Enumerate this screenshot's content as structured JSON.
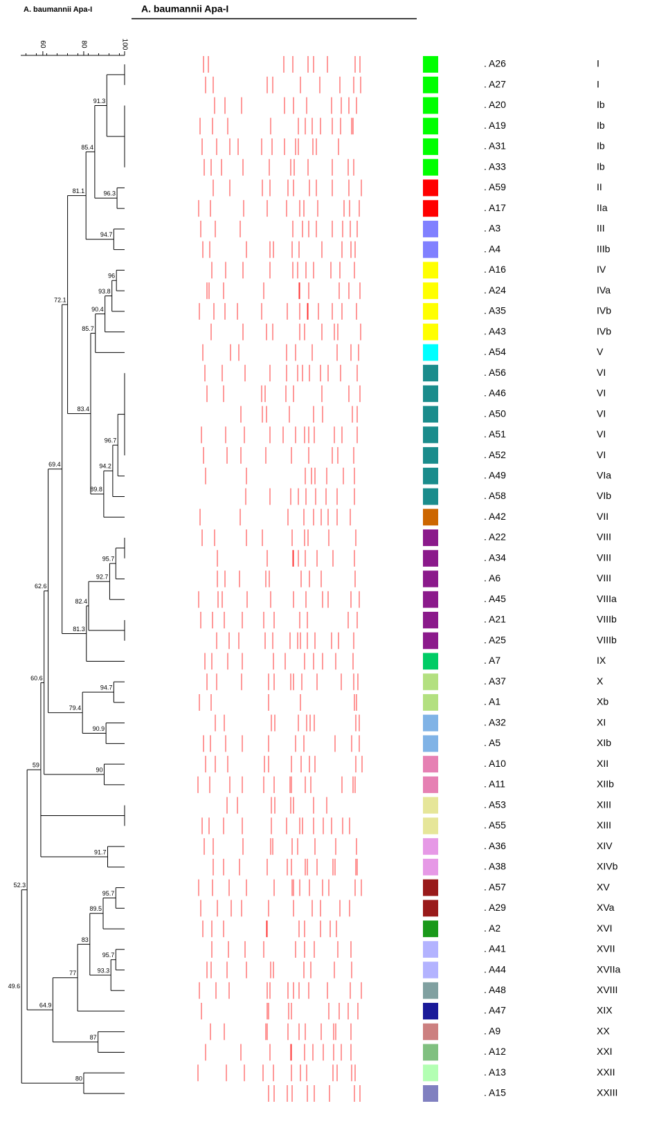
{
  "chart_data": {
    "type": "dendrogram",
    "dendrogram_title": "A. baumannii Apa-I",
    "gel_title": "A. baumannii Apa-I",
    "xlim": [
      49.2,
      100
    ],
    "xticks": [
      60,
      80,
      100
    ],
    "rows": [
      {
        "isolate": ". A26",
        "type": "I",
        "color": "#00ff00"
      },
      {
        "isolate": ". A27",
        "type": "I",
        "color": "#00ff00"
      },
      {
        "isolate": ". A20",
        "type": "Ib",
        "color": "#00ff00"
      },
      {
        "isolate": ". A19",
        "type": "Ib",
        "color": "#00ff00"
      },
      {
        "isolate": ". A31",
        "type": "Ib",
        "color": "#00ff00"
      },
      {
        "isolate": ". A33",
        "type": "Ib",
        "color": "#00ff00"
      },
      {
        "isolate": ". A59",
        "type": "II",
        "color": "#ff0000"
      },
      {
        "isolate": ". A17",
        "type": "IIa",
        "color": "#ff0000"
      },
      {
        "isolate": ". A3",
        "type": "III",
        "color": "#8080ff"
      },
      {
        "isolate": ". A4",
        "type": "IIIb",
        "color": "#8080ff"
      },
      {
        "isolate": ". A16",
        "type": "IV",
        "color": "#ffff00"
      },
      {
        "isolate": ". A24",
        "type": "IVa",
        "color": "#ffff00"
      },
      {
        "isolate": ". A35",
        "type": "IVb",
        "color": "#ffff00"
      },
      {
        "isolate": ". A43",
        "type": "IVb",
        "color": "#ffff00"
      },
      {
        "isolate": ". A54",
        "type": "V",
        "color": "#00ffff"
      },
      {
        "isolate": ". A56",
        "type": "VI",
        "color": "#1a8c8c"
      },
      {
        "isolate": ". A46",
        "type": "VI",
        "color": "#1a8c8c"
      },
      {
        "isolate": ". A50",
        "type": "VI",
        "color": "#1a8c8c"
      },
      {
        "isolate": ". A51",
        "type": "VI",
        "color": "#1a8c8c"
      },
      {
        "isolate": ". A52",
        "type": "VI",
        "color": "#1a8c8c"
      },
      {
        "isolate": ". A49",
        "type": "VIa",
        "color": "#1a8c8c"
      },
      {
        "isolate": ". A58",
        "type": "VIb",
        "color": "#1a8c8c"
      },
      {
        "isolate": ". A42",
        "type": "VII",
        "color": "#cc6600"
      },
      {
        "isolate": ". A22",
        "type": "VIII",
        "color": "#8b1a8b"
      },
      {
        "isolate": ". A34",
        "type": "VIII",
        "color": "#8b1a8b"
      },
      {
        "isolate": ". A6",
        "type": "VIII",
        "color": "#8b1a8b"
      },
      {
        "isolate": ". A45",
        "type": "VIIIa",
        "color": "#8b1a8b"
      },
      {
        "isolate": ". A21",
        "type": "VIIIb",
        "color": "#8b1a8b"
      },
      {
        "isolate": ". A25",
        "type": "VIIIb",
        "color": "#8b1a8b"
      },
      {
        "isolate": ". A7",
        "type": "IX",
        "color": "#00cc66"
      },
      {
        "isolate": ". A37",
        "type": "X",
        "color": "#b3e080"
      },
      {
        "isolate": ". A1",
        "type": "Xb",
        "color": "#b3e080"
      },
      {
        "isolate": ". A32",
        "type": "XI",
        "color": "#80b3e6"
      },
      {
        "isolate": ". A5",
        "type": "XIb",
        "color": "#80b3e6"
      },
      {
        "isolate": ". A10",
        "type": "XII",
        "color": "#e680b3"
      },
      {
        "isolate": ". A11",
        "type": "XIIb",
        "color": "#e680b3"
      },
      {
        "isolate": ". A53",
        "type": "XIII",
        "color": "#e6e699"
      },
      {
        "isolate": ". A55",
        "type": "XIII",
        "color": "#e6e699"
      },
      {
        "isolate": ". A36",
        "type": "XIV",
        "color": "#e699e6"
      },
      {
        "isolate": ". A38",
        "type": "XIVb",
        "color": "#e699e6"
      },
      {
        "isolate": ". A57",
        "type": "XV",
        "color": "#991a1a"
      },
      {
        "isolate": ". A29",
        "type": "XVa",
        "color": "#991a1a"
      },
      {
        "isolate": ". A2",
        "type": "XVI",
        "color": "#1a991a"
      },
      {
        "isolate": ". A41",
        "type": "XVII",
        "color": "#b3b3ff"
      },
      {
        "isolate": ". A44",
        "type": "XVIIa",
        "color": "#b3b3ff"
      },
      {
        "isolate": ". A48",
        "type": "XVIII",
        "color": "#80a0a0"
      },
      {
        "isolate": ". A47",
        "type": "XIX",
        "color": "#1a1a99"
      },
      {
        "isolate": ". A9",
        "type": "XX",
        "color": "#cc8080"
      },
      {
        "isolate": ". A12",
        "type": "XXI",
        "color": "#80c080"
      },
      {
        "isolate": ". A13",
        "type": "XXII",
        "color": "#b3ffb3"
      },
      {
        "isolate": ". A15",
        "type": "XXIII",
        "color": "#8080c0"
      }
    ],
    "tree": {
      "value": 49.6,
      "children": [
        {
          "value": 52.3,
          "children": [
            {
              "value": 59.0,
              "children": [
                {
                  "value": 60.6,
                  "children": [
                    {
                      "value": 62.6,
                      "children": [
                        {
                          "value": 69.4,
                          "children": [
                            {
                              "value": 72.1,
                              "children": [
                                {
                                  "value": 81.1,
                                  "children": [
                                    {
                                      "value": 85.4,
                                      "children": [
                                        {
                                          "value": 91.3,
                                          "children": [
                                            [
                                              0,
                                              1
                                            ],
                                            [
                                              2,
                                              3,
                                              4,
                                              5
                                            ]
                                          ]
                                        },
                                        {
                                          "value": 96.3,
                                          "children": [
                                            6,
                                            7
                                          ]
                                        }
                                      ]
                                    },
                                    {
                                      "value": 94.7,
                                      "children": [
                                        8,
                                        9
                                      ]
                                    }
                                  ]
                                },
                                {
                                  "value": 83.4,
                                  "children": [
                                    {
                                      "value": 85.7,
                                      "children": [
                                        {
                                          "value": 90.4,
                                          "children": [
                                            {
                                              "value": 93.8,
                                              "children": [
                                                {
                                                  "value": 96.0,
                                                  "children": [
                                                    10,
                                                    11
                                                  ]
                                                },
                                                12
                                              ]
                                            },
                                            13
                                          ]
                                        },
                                        14
                                      ]
                                    },
                                    {
                                      "value": 89.8,
                                      "children": [
                                        {
                                          "value": 94.2,
                                          "children": [
                                            {
                                              "value": 96.7,
                                              "children": [
                                                [
                                                  15,
                                                  16,
                                                  17,
                                                  18,
                                                  19
                                                ],
                                                20
                                              ]
                                            },
                                            21
                                          ]
                                        },
                                        22
                                      ]
                                    }
                                  ]
                                }
                              ]
                            },
                            {
                              "value": 81.3,
                              "children": [
                                {
                                  "value": 82.4,
                                  "children": [
                                    {
                                      "value": 92.7,
                                      "children": [
                                        {
                                          "value": 95.7,
                                          "children": [
                                            [
                                              23,
                                              24
                                            ],
                                            25
                                          ]
                                        },
                                        26
                                      ]
                                    },
                                    [
                                      27,
                                      28
                                    ]
                                  ]
                                },
                                29
                              ]
                            }
                          ]
                        },
                        {
                          "value": 79.4,
                          "children": [
                            {
                              "value": 94.7,
                              "children": [
                                30,
                                31
                              ]
                            },
                            {
                              "value": 90.9,
                              "children": [
                                32,
                                33
                              ]
                            }
                          ]
                        }
                      ]
                    },
                    {
                      "value": 90.0,
                      "children": [
                        34,
                        35
                      ]
                    }
                  ]
                },
                [
                  36,
                  37
                ],
                {
                  "value": 91.7,
                  "children": [
                    38,
                    39
                  ]
                }
              ]
            },
            {
              "value": 64.9,
              "children": [
                {
                  "value": 77.0,
                  "children": [
                    {
                      "value": 83.0,
                      "children": [
                        {
                          "value": 89.5,
                          "children": [
                            {
                              "value": 95.7,
                              "children": [
                                40,
                                41
                              ]
                            },
                            42
                          ]
                        },
                        {
                          "value": 93.3,
                          "children": [
                            {
                              "value": 95.7,
                              "children": [
                                43,
                                44
                              ]
                            },
                            45
                          ]
                        }
                      ]
                    },
                    46
                  ]
                },
                {
                  "value": 87.0,
                  "children": [
                    47,
                    48
                  ]
                }
              ]
            }
          ]
        },
        {
          "value": 80.0,
          "children": [
            49,
            50
          ]
        }
      ]
    }
  }
}
